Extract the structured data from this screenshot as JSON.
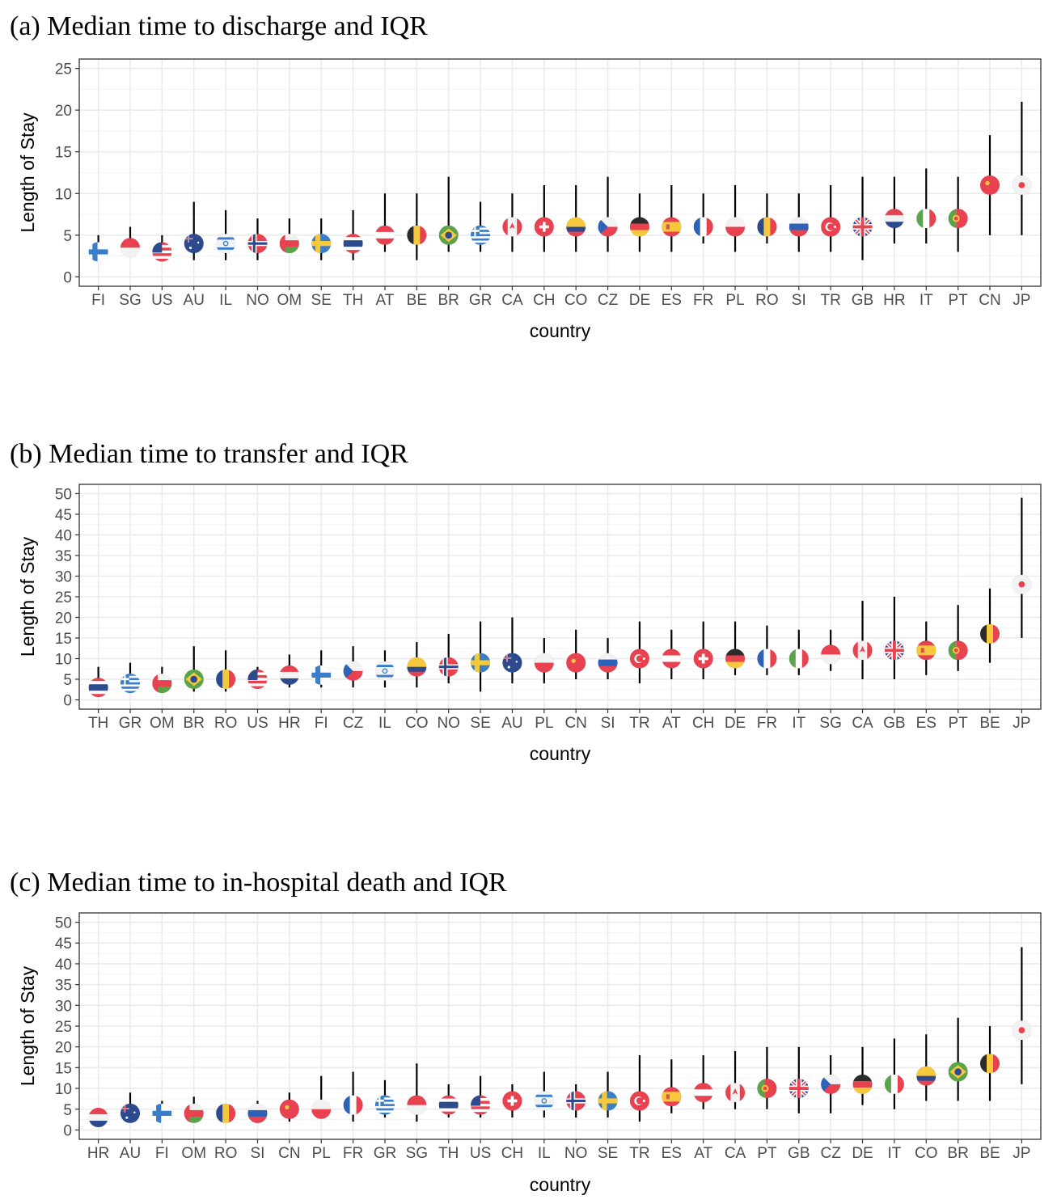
{
  "chart_data": [
    {
      "type": "scatter",
      "title": "(a) Median time to discharge and IQR",
      "xlabel": "country",
      "ylabel": "Length of Stay",
      "ylim": [
        0,
        25
      ],
      "yticks": [
        0,
        5,
        10,
        15,
        20,
        25
      ],
      "categories": [
        "FI",
        "SG",
        "US",
        "AU",
        "IL",
        "NO",
        "OM",
        "SE",
        "TH",
        "AT",
        "BE",
        "BR",
        "GR",
        "CA",
        "CH",
        "CO",
        "CZ",
        "DE",
        "ES",
        "FR",
        "PL",
        "RO",
        "SI",
        "TR",
        "GB",
        "HR",
        "IT",
        "PT",
        "CN",
        "JP"
      ],
      "median": [
        3,
        3.5,
        3,
        4,
        4,
        4,
        4,
        4,
        4,
        5,
        5,
        5,
        5,
        6,
        6,
        6,
        6,
        6,
        6,
        6,
        6,
        6,
        6,
        6,
        6,
        7,
        7,
        7,
        11,
        11
      ],
      "q1": [
        2,
        3,
        2,
        2,
        2,
        2,
        3,
        2,
        2,
        3,
        2,
        3,
        3,
        3,
        3,
        3,
        3,
        3,
        3,
        4,
        3,
        4,
        3,
        3,
        2,
        4,
        4,
        3,
        5,
        5
      ],
      "q3": [
        5,
        6,
        5,
        9,
        8,
        7,
        7,
        7,
        8,
        10,
        10,
        12,
        9,
        10,
        11,
        11,
        12,
        10,
        11,
        10,
        11,
        10,
        10,
        11,
        12,
        12,
        13,
        12,
        17,
        21
      ]
    },
    {
      "type": "scatter",
      "title": "(b) Median time to transfer and IQR",
      "xlabel": "country",
      "ylabel": "Length of Stay",
      "ylim": [
        0,
        50
      ],
      "yticks": [
        0,
        5,
        10,
        15,
        20,
        25,
        30,
        35,
        40,
        45,
        50
      ],
      "categories": [
        "TH",
        "GR",
        "OM",
        "BR",
        "RO",
        "US",
        "HR",
        "FI",
        "CZ",
        "IL",
        "CO",
        "NO",
        "SE",
        "AU",
        "PL",
        "CN",
        "SI",
        "TR",
        "AT",
        "CH",
        "DE",
        "FR",
        "IT",
        "SG",
        "CA",
        "GB",
        "ES",
        "PT",
        "BE",
        "JP"
      ],
      "median": [
        3,
        4,
        4,
        5,
        5,
        5,
        6,
        6,
        7,
        7,
        8,
        8,
        9,
        9,
        9,
        9,
        9,
        10,
        10,
        10,
        10,
        10,
        10,
        11,
        12,
        12,
        12,
        12,
        16,
        28
      ],
      "q1": [
        2,
        2,
        2,
        2,
        2,
        3,
        3,
        3,
        3,
        3,
        3,
        4,
        2,
        4,
        4,
        5,
        5,
        4,
        5,
        5,
        6,
        6,
        6,
        7,
        5,
        5,
        6,
        7,
        9,
        15
      ],
      "q3": [
        8,
        9,
        8,
        13,
        12,
        8,
        11,
        12,
        13,
        12,
        14,
        16,
        19,
        20,
        15,
        17,
        15,
        19,
        17,
        19,
        19,
        18,
        17,
        17,
        24,
        25,
        19,
        23,
        27,
        49
      ]
    },
    {
      "type": "scatter",
      "title": "(c) Median time to in-hospital death and IQR",
      "xlabel": "country",
      "ylabel": "Length of Stay",
      "ylim": [
        0,
        50
      ],
      "yticks": [
        0,
        5,
        10,
        15,
        20,
        25,
        30,
        35,
        40,
        45,
        50
      ],
      "categories": [
        "HR",
        "AU",
        "FI",
        "OM",
        "RO",
        "SI",
        "CN",
        "PL",
        "FR",
        "GR",
        "SG",
        "TH",
        "US",
        "CH",
        "IL",
        "NO",
        "SE",
        "TR",
        "ES",
        "AT",
        "CA",
        "PT",
        "GB",
        "CZ",
        "DE",
        "IT",
        "CO",
        "BR",
        "BE",
        "JP"
      ],
      "median": [
        3,
        4,
        4,
        4,
        4,
        4,
        5,
        5,
        6,
        6,
        6,
        6,
        6,
        7,
        7,
        7,
        7,
        7,
        8,
        9,
        9,
        10,
        10,
        11,
        11,
        11,
        13,
        14,
        16,
        24
      ],
      "q1": [
        2,
        2,
        2,
        2,
        2,
        3,
        2,
        3,
        2,
        3,
        2,
        3,
        3,
        3,
        3,
        3,
        3,
        2,
        4,
        5,
        5,
        5,
        4,
        4,
        6,
        5,
        7,
        7,
        7,
        11
      ],
      "q3": [
        5,
        9,
        7,
        8,
        6,
        7,
        9,
        13,
        14,
        12,
        16,
        11,
        13,
        11,
        14,
        11,
        14,
        18,
        17,
        18,
        19,
        20,
        20,
        18,
        20,
        22,
        23,
        27,
        25,
        44
      ]
    }
  ],
  "flags": {
    "FI": {
      "type": "nordic",
      "bg": "#ffffff",
      "cross": "#3a7dc9"
    },
    "SE": {
      "type": "nordic",
      "bg": "#3a7dc9",
      "cross": "#f6c93c"
    },
    "NO": {
      "type": "nordic",
      "bg": "#e8414f",
      "cross": "#ffffff",
      "inner": "#2d4a8e"
    },
    "DE": {
      "type": "h",
      "colors": [
        "#2b2b2b",
        "#e8414f",
        "#f6c93c"
      ]
    },
    "AT": {
      "type": "h",
      "colors": [
        "#e8414f",
        "#ffffff",
        "#e8414f"
      ]
    },
    "CO": {
      "type": "h3",
      "colors": [
        "#f6c93c",
        "#2d4a8e",
        "#e8414f"
      ]
    },
    "TH": {
      "type": "h5",
      "colors": [
        "#e8414f",
        "#ffffff",
        "#2d4a8e",
        "#ffffff",
        "#e8414f"
      ]
    },
    "PL": {
      "type": "h",
      "colors": [
        "#f2f2f2",
        "#e8414f"
      ]
    },
    "RO": {
      "type": "v",
      "colors": [
        "#2d4a8e",
        "#f6c93c",
        "#e8414f"
      ]
    },
    "BE": {
      "type": "v",
      "colors": [
        "#2b2b2b",
        "#f6c93c",
        "#e8414f"
      ]
    },
    "FR": {
      "type": "v",
      "colors": [
        "#2d62b8",
        "#ffffff",
        "#e8414f"
      ]
    },
    "IT": {
      "type": "v",
      "colors": [
        "#5ba34a",
        "#ffffff",
        "#e8414f"
      ]
    },
    "GR": {
      "type": "stripes",
      "bg": "#ffffff",
      "stripe": "#3a7dc9"
    },
    "US": {
      "type": "us"
    },
    "IL": {
      "type": "il"
    },
    "CA": {
      "type": "ca"
    },
    "CH": {
      "type": "ch"
    },
    "SG": {
      "type": "h",
      "colors": [
        "#e8414f",
        "#f2f2f2"
      ]
    },
    "TR": {
      "type": "tr"
    },
    "CN": {
      "type": "cn"
    },
    "JP": {
      "type": "jp"
    },
    "GB": {
      "type": "gb"
    },
    "AU": {
      "type": "au"
    },
    "BR": {
      "type": "br"
    },
    "OM": {
      "type": "om"
    },
    "HR": {
      "type": "h",
      "colors": [
        "#e8414f",
        "#f2f2f2",
        "#2d4a8e"
      ]
    },
    "SI": {
      "type": "h",
      "colors": [
        "#f2f2f2",
        "#2d62b8",
        "#e8414f"
      ]
    },
    "CZ": {
      "type": "cz"
    },
    "ES": {
      "type": "es"
    },
    "PT": {
      "type": "pt"
    }
  }
}
